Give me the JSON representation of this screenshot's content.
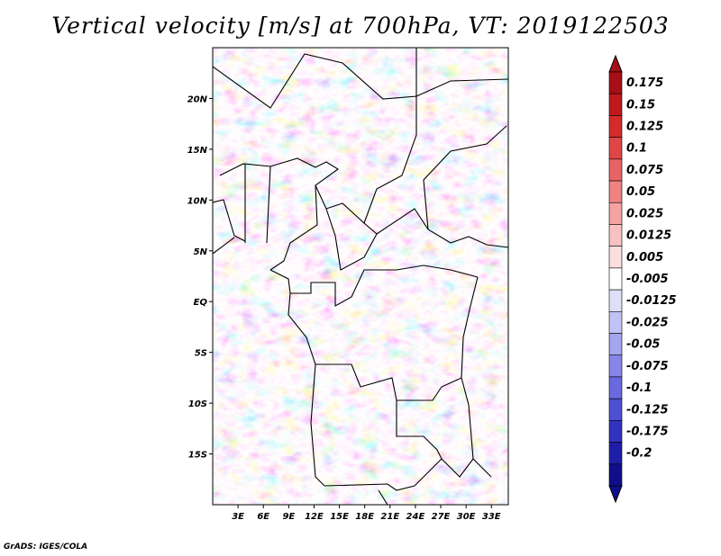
{
  "title": "Vertical velocity [m/s] at 700hPa, VT: 2019122503",
  "footer": "GrADS: IGES/COLA",
  "map": {
    "lat_labels": [
      "20N",
      "15N",
      "10N",
      "5N",
      "EQ",
      "5S",
      "10S",
      "15S"
    ],
    "lat_values": [
      20,
      15,
      10,
      5,
      0,
      -5,
      -10,
      -15
    ],
    "lon_labels": [
      "3E",
      "6E",
      "9E",
      "12E",
      "15E",
      "18E",
      "21E",
      "24E",
      "27E",
      "30E",
      "33E"
    ],
    "lon_values": [
      3,
      6,
      9,
      12,
      15,
      18,
      21,
      24,
      27,
      30,
      33
    ],
    "lon_range": [
      0,
      35
    ],
    "lat_range": [
      -20,
      25
    ]
  },
  "colorbar": {
    "labels": [
      "0.175",
      "0.15",
      "0.125",
      "0.1",
      "0.075",
      "0.05",
      "0.025",
      "0.0125",
      "0.005",
      "-0.005",
      "-0.0125",
      "-0.025",
      "-0.05",
      "-0.075",
      "-0.1",
      "-0.125",
      "-0.175",
      "-0.2"
    ],
    "colors": [
      "#a50f15",
      "#c0181f",
      "#d62a2a",
      "#e04646",
      "#e86464",
      "#ef8282",
      "#f4a2a2",
      "#f8c2c2",
      "#fbdfdf",
      "#ffffff",
      "#dfdff8",
      "#c2c2f4",
      "#a4a4ef",
      "#8686e8",
      "#6a6ae0",
      "#4f4fd4",
      "#3232c2",
      "#1e1ea8",
      "#0f0f8a"
    ]
  }
}
